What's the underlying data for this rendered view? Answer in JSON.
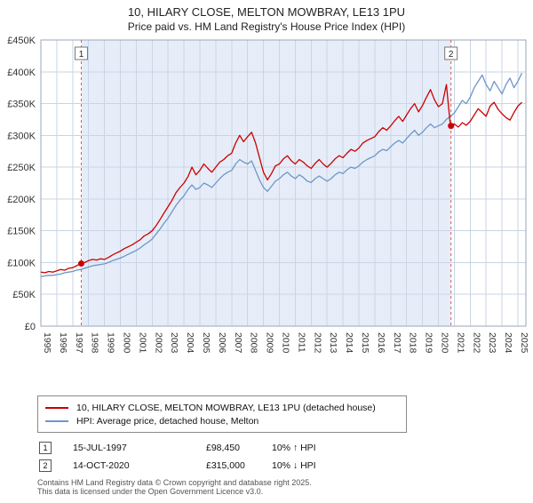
{
  "title": "10, HILARY CLOSE, MELTON MOWBRAY, LE13 1PU",
  "subtitle": "Price paid vs. HM Land Registry's House Price Index (HPI)",
  "chart_data": {
    "type": "line",
    "x_range": [
      1995,
      2025.5
    ],
    "x_step": 0.25,
    "ylim": [
      0,
      450000
    ],
    "y_tick_step": 50000,
    "y_ticks": [
      "£0",
      "£50K",
      "£100K",
      "£150K",
      "£200K",
      "£250K",
      "£300K",
      "£350K",
      "£400K",
      "£450K"
    ],
    "x_ticks": [
      "1995",
      "1996",
      "1997",
      "1998",
      "1999",
      "2000",
      "2001",
      "2002",
      "2003",
      "2004",
      "2005",
      "2006",
      "2007",
      "2008",
      "2009",
      "2010",
      "2011",
      "2012",
      "2013",
      "2014",
      "2015",
      "2016",
      "2017",
      "2018",
      "2019",
      "2020",
      "2021",
      "2022",
      "2023",
      "2024",
      "2025"
    ],
    "grid": true,
    "colors": {
      "band": "#e6edf8",
      "grid": "#c9d5e6",
      "frame": "#9aa7b8",
      "event": "#e05858",
      "event_dot": "#cc0000"
    },
    "series": [
      {
        "name": "10, HILARY CLOSE, MELTON MOWBRAY, LE13 1PU (detached house)",
        "color": "#cc0000",
        "values": [
          85000,
          84000,
          86000,
          85000,
          87000,
          89000,
          88000,
          91000,
          92000,
          95000,
          98450,
          100000,
          103000,
          105000,
          104000,
          106000,
          105000,
          108000,
          112000,
          115000,
          118000,
          122000,
          125000,
          128000,
          132000,
          136000,
          142000,
          145000,
          150000,
          158000,
          168000,
          178000,
          188000,
          198000,
          210000,
          218000,
          225000,
          235000,
          250000,
          238000,
          245000,
          255000,
          248000,
          242000,
          250000,
          258000,
          262000,
          268000,
          272000,
          288000,
          300000,
          290000,
          298000,
          305000,
          288000,
          265000,
          242000,
          230000,
          240000,
          252000,
          255000,
          263000,
          268000,
          260000,
          255000,
          262000,
          258000,
          252000,
          248000,
          256000,
          262000,
          255000,
          250000,
          256000,
          263000,
          268000,
          265000,
          272000,
          278000,
          275000,
          280000,
          288000,
          292000,
          295000,
          298000,
          306000,
          312000,
          308000,
          315000,
          323000,
          330000,
          322000,
          332000,
          342000,
          350000,
          337000,
          347000,
          360000,
          372000,
          356000,
          345000,
          350000,
          380000,
          315000,
          318000,
          313000,
          320000,
          316000,
          322000,
          332000,
          342000,
          336000,
          330000,
          346000,
          352000,
          341000,
          334000,
          328000,
          324000,
          336000,
          346000,
          352000
        ]
      },
      {
        "name": "HPI: Average price, detached house, Melton",
        "color": "#6e96c8",
        "values": [
          78000,
          79000,
          80000,
          80000,
          81000,
          82000,
          84000,
          85000,
          86000,
          88000,
          89000,
          91000,
          93000,
          95000,
          96000,
          97000,
          98000,
          100000,
          103000,
          105000,
          107000,
          110000,
          113000,
          116000,
          119000,
          123000,
          128000,
          132000,
          137000,
          145000,
          153000,
          162000,
          170000,
          180000,
          190000,
          198000,
          205000,
          215000,
          222000,
          215000,
          218000,
          225000,
          222000,
          218000,
          225000,
          232000,
          238000,
          242000,
          245000,
          255000,
          262000,
          258000,
          255000,
          260000,
          245000,
          230000,
          218000,
          212000,
          220000,
          228000,
          232000,
          238000,
          242000,
          236000,
          232000,
          238000,
          234000,
          228000,
          226000,
          232000,
          236000,
          232000,
          228000,
          232000,
          238000,
          242000,
          240000,
          246000,
          250000,
          248000,
          252000,
          258000,
          262000,
          265000,
          268000,
          274000,
          278000,
          276000,
          282000,
          288000,
          292000,
          288000,
          295000,
          302000,
          308000,
          300000,
          305000,
          312000,
          318000,
          312000,
          315000,
          318000,
          325000,
          330000,
          335000,
          345000,
          355000,
          350000,
          360000,
          375000,
          385000,
          395000,
          380000,
          370000,
          385000,
          375000,
          365000,
          380000,
          390000,
          375000,
          385000,
          398000
        ]
      }
    ],
    "markers": [
      {
        "label": "1",
        "x": 1997.54,
        "y": 98450
      },
      {
        "label": "2",
        "x": 2020.79,
        "y": 315000
      }
    ]
  },
  "legend": {
    "items": [
      {
        "label": "10, HILARY CLOSE, MELTON MOWBRAY, LE13 1PU (detached house)",
        "color": "#cc0000"
      },
      {
        "label": "HPI: Average price, detached house, Melton",
        "color": "#6e96c8"
      }
    ]
  },
  "annotations": [
    {
      "num": "1",
      "date": "15-JUL-1997",
      "price": "£98,450",
      "hpi": "10% ↑ HPI"
    },
    {
      "num": "2",
      "date": "14-OCT-2020",
      "price": "£315,000",
      "hpi": "10% ↓ HPI"
    }
  ],
  "footer": [
    "Contains HM Land Registry data © Crown copyright and database right 2025.",
    "This data is licensed under the Open Government Licence v3.0."
  ]
}
